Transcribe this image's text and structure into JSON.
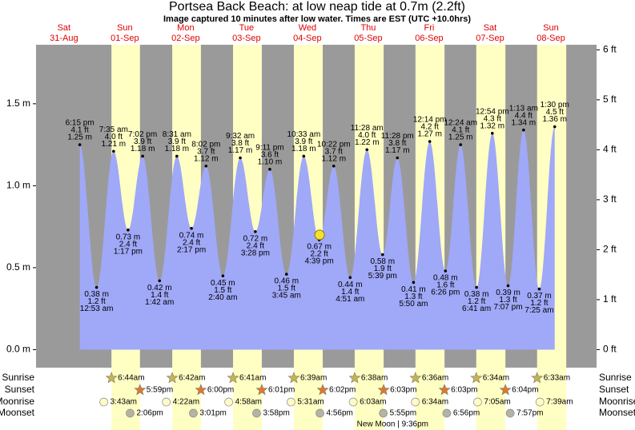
{
  "chart_data": {
    "type": "area",
    "title": "Portsea Back Beach: at low  neap tide at 0.7m (2.2ft)",
    "subtitle": "Image captured 10 minutes after low water. Times are EST (UTC +10.0hrs)",
    "weekdays": [
      "Sat",
      "Sun",
      "Mon",
      "Tue",
      "Wed",
      "Thu",
      "Fri",
      "Sat",
      "Sun"
    ],
    "dates": [
      "31-Aug",
      "01-Sep",
      "02-Sep",
      "03-Sep",
      "04-Sep",
      "05-Sep",
      "06-Sep",
      "07-Sep",
      "08-Sep"
    ],
    "xlim": [
      1,
      222
    ],
    "ylim": [
      -0.11,
      1.86
    ],
    "yticks": [
      {
        "value": 0,
        "label": "0.0 m"
      },
      {
        "value": 0.5,
        "label": "0.5 m"
      },
      {
        "value": 1,
        "label": "1.0 m"
      },
      {
        "value": 1.5,
        "label": "1.5 m"
      }
    ],
    "y2lim": [
      -0.361,
      6.102
    ],
    "y2ticks": [
      {
        "value": 0,
        "label": "0 ft"
      },
      {
        "value": 1,
        "label": "1 ft"
      },
      {
        "value": 2,
        "label": "2 ft"
      },
      {
        "value": 3,
        "label": "3 ft"
      },
      {
        "value": 4,
        "label": "4 ft"
      },
      {
        "value": 5,
        "label": "5 ft"
      },
      {
        "value": 6,
        "label": "6 ft"
      }
    ],
    "color": "#a0a8f8",
    "x": [
      18.25,
      24.88,
      31.58,
      37.28,
      43.03,
      49.7,
      56.52,
      62.28,
      68.03,
      74.67,
      81.53,
      87.47,
      93.18,
      99.75,
      106.55,
      112.65,
      118.37,
      124.85,
      131.47,
      137.65,
      143.47,
      149.83,
      156.23,
      162.43,
      168.4,
      174.68,
      180.9,
      187.12,
      193.22,
      199.42,
      205.5
    ],
    "values": [
      1.25,
      0.38,
      1.21,
      0.73,
      1.18,
      0.42,
      1.18,
      0.74,
      1.12,
      0.45,
      1.17,
      0.72,
      1.1,
      0.46,
      1.18,
      0.67,
      1.12,
      0.44,
      1.22,
      0.58,
      1.17,
      0.41,
      1.27,
      0.48,
      1.25,
      0.38,
      1.32,
      0.39,
      1.34,
      0.37,
      1.36
    ],
    "value_labels": [
      "1.25 m",
      "0.38 m",
      "1.21 m",
      "0.73 m",
      "1.18 m",
      "0.42 m",
      "1.18 m",
      "0.74 m",
      "1.12 m",
      "0.45 m",
      "1.17 m",
      "0.72 m",
      "1.10 m",
      "0.46 m",
      "1.18 m",
      "0.67 m",
      "1.12 m",
      "0.44 m",
      "1.22 m",
      "0.58 m",
      "1.17 m",
      "0.41 m",
      "1.27 m",
      "0.48 m",
      "1.25 m",
      "0.38 m",
      "1.32 m",
      "0.39 m",
      "1.34 m",
      "0.37 m",
      "1.36 m"
    ],
    "ft_labels": [
      "4.1 ft",
      "1.2 ft",
      "4.0 ft",
      "2.4 ft",
      "3.9 ft",
      "1.4 ft",
      "3.9 ft",
      "2.4 ft",
      "3.7 ft",
      "1.5 ft",
      "3.8 ft",
      "2.4 ft",
      "3.6 ft",
      "1.5 ft",
      "3.9 ft",
      "2.2 ft",
      "3.7 ft",
      "1.4 ft",
      "4.0 ft",
      "1.9 ft",
      "3.8 ft",
      "1.3 ft",
      "4.2 ft",
      "1.6 ft",
      "4.1 ft",
      "1.2 ft",
      "4.3 ft",
      "1.3 ft",
      "4.4 ft",
      "1.2 ft",
      "4.5 ft"
    ],
    "times": [
      "6:15 pm",
      "12:53 am",
      "7:35 am",
      "1:17 pm",
      "7:02 pm",
      "1:42 am",
      "8:31 am",
      "2:17 pm",
      "8:02 pm",
      "2:40 am",
      "9:32 am",
      "3:28 pm",
      "9:11 pm",
      "3:45 am",
      "10:33 am",
      "4:39 pm",
      "10:22 pm",
      "4:51 am",
      "11:28 am",
      "5:39 pm",
      "11:28 pm",
      "5:50 am",
      "12:14 pm",
      "6:26 pm",
      "12:24 am",
      "6:41 am",
      "12:54 pm",
      "7:07 pm",
      "1:13 am",
      "7:25 am",
      "1:30 pm"
    ],
    "now": {
      "x": 112.8,
      "value": 0.7
    },
    "astro": [
      {
        "label": "Sunrise",
        "times": [
          "6:44am",
          "6:42am",
          "6:41am",
          "6:39am",
          "6:38am",
          "6:36am",
          "6:34am",
          "6:33am"
        ]
      },
      {
        "label": "Sunset",
        "times": [
          "5:59pm",
          "6:00pm",
          "6:01pm",
          "6:02pm",
          "6:03pm",
          "6:03pm",
          "6:04pm"
        ]
      },
      {
        "label": "Moonrise",
        "times": [
          "3:43am",
          "4:22am",
          "4:58am",
          "5:31am",
          "6:03am",
          "6:34am",
          "7:05am",
          "7:39am"
        ]
      },
      {
        "label": "Moonset",
        "times": [
          "2:06pm",
          "3:01pm",
          "3:58pm",
          "4:56pm",
          "5:55pm",
          "6:56pm",
          "7:57pm"
        ]
      }
    ],
    "new_moon": {
      "label": "New Moon | 9:36pm",
      "x": 141.6
    }
  }
}
